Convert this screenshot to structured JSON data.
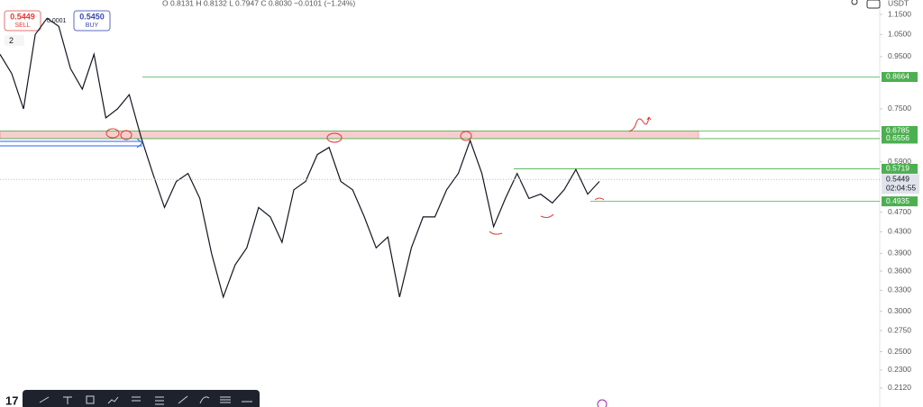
{
  "header": {
    "ohlc": "O 0.8131 H 0.8132 L 0.7947 C 0.8030 −0.0101 (−1.24%)",
    "currency": "USDT"
  },
  "trade": {
    "sell_price": "0.5449",
    "sell_label": "SELL",
    "buy_price": "0.5450",
    "buy_label": "BUY",
    "spread": "0.0001",
    "count": "2"
  },
  "chart_data": {
    "type": "line",
    "log_scale": true,
    "color": "#131722",
    "values": [
      0.96,
      0.88,
      0.75,
      1.05,
      1.13,
      1.09,
      0.9,
      0.82,
      0.96,
      0.72,
      0.75,
      0.8,
      0.66,
      0.56,
      0.48,
      0.54,
      0.56,
      0.5,
      0.39,
      0.32,
      0.37,
      0.4,
      0.48,
      0.46,
      0.41,
      0.52,
      0.54,
      0.61,
      0.63,
      0.54,
      0.52,
      0.46,
      0.4,
      0.42,
      0.32,
      0.4,
      0.46,
      0.46,
      0.52,
      0.56,
      0.65,
      0.56,
      0.44,
      0.5,
      0.56,
      0.5,
      0.51,
      0.49,
      0.52,
      0.57,
      0.51,
      0.54
    ],
    "ylim": [
      0.1946,
      1.2275
    ],
    "yticks": [
      {
        "value": 1.15,
        "label": "1.1500"
      },
      {
        "value": 1.05,
        "label": "1.0500"
      },
      {
        "value": 0.95,
        "label": "0.9500"
      },
      {
        "value": 0.75,
        "label": "0.7500"
      },
      {
        "value": 0.59,
        "label": "0.5900"
      },
      {
        "value": 0.47,
        "label": "0.4700"
      },
      {
        "value": 0.43,
        "label": "0.4300"
      },
      {
        "value": 0.39,
        "label": "0.3900"
      },
      {
        "value": 0.36,
        "label": "0.3600"
      },
      {
        "value": 0.33,
        "label": "0.3300"
      },
      {
        "value": 0.3,
        "label": "0.3000"
      },
      {
        "value": 0.275,
        "label": "0.2750"
      },
      {
        "value": 0.25,
        "label": "0.2500"
      },
      {
        "value": 0.23,
        "label": "0.2300"
      },
      {
        "value": 0.212,
        "label": "0.2120"
      }
    ],
    "levels": [
      {
        "value": 0.8664,
        "label": "0.8664"
      },
      {
        "value": 0.6785,
        "label": "0.6785"
      },
      {
        "value": 0.6556,
        "label": "0.6556"
      },
      {
        "value": 0.5719,
        "label": "0.5719"
      },
      {
        "value": 0.4935,
        "label": "0.4935"
      }
    ],
    "level_color": "#4caf50",
    "last_price": {
      "value": 0.5449,
      "label": "0.5449"
    },
    "countdown": "02:04:55"
  }
}
